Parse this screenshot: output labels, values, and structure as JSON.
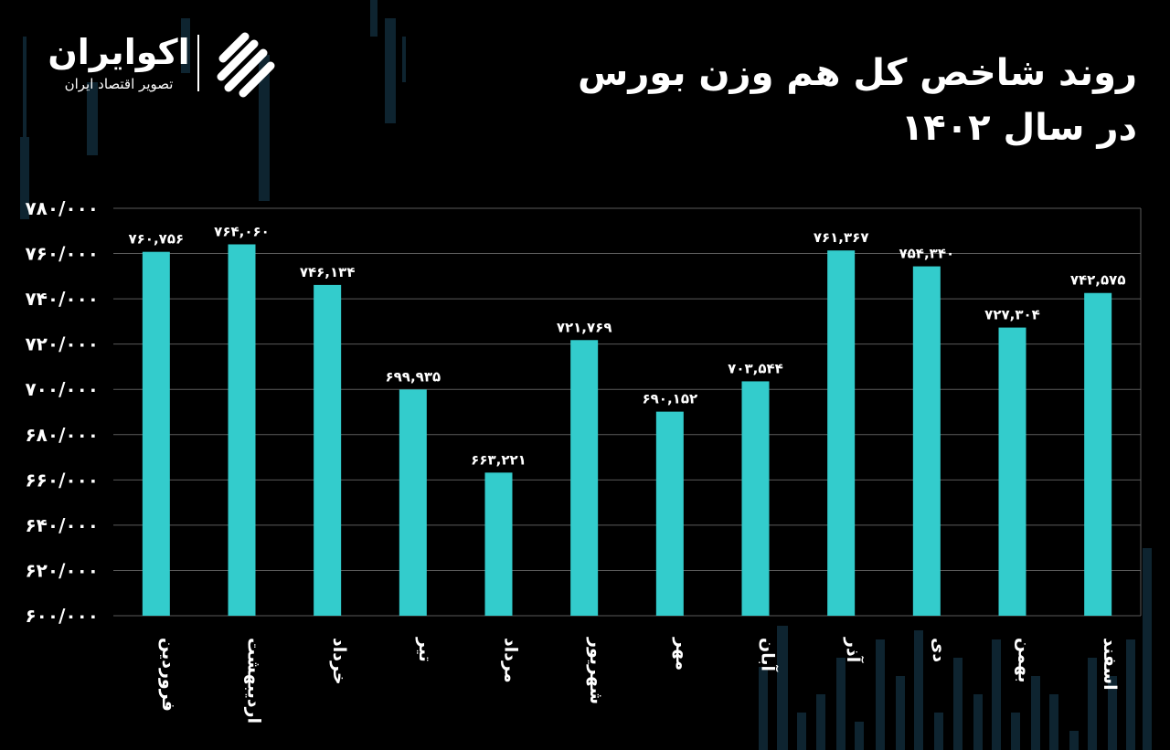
{
  "brand": {
    "name": "اکوایران",
    "tagline": "تصویر اقتصاد ایران"
  },
  "title_line1": "روند شاخص کل هم وزن بورس",
  "title_line2": "در سال ۱۴۰۲",
  "colors": {
    "background": "#000000",
    "bar": "#33cccc",
    "grid": "#5a5a5a",
    "text": "#ffffff",
    "decor": "#0e2430"
  },
  "chart_data": {
    "type": "bar",
    "title": "روند شاخص کل هم وزن بورس در سال ۱۴۰۲",
    "xlabel": "",
    "ylabel": "",
    "ylim": [
      600000,
      780000
    ],
    "grid": true,
    "legend": "none",
    "categories": [
      "فروردین",
      "اردیبهشت",
      "خرداد",
      "تیر",
      "مرداد",
      "شهریور",
      "مهر",
      "آبان",
      "آذر",
      "دی",
      "بهمن",
      "اسفند"
    ],
    "values": [
      760756,
      764060,
      746134,
      699935,
      663221,
      721769,
      690152,
      703544,
      761367,
      754340,
      727304,
      742575
    ],
    "value_labels": [
      "۷۶۰,۷۵۶",
      "۷۶۴,۰۶۰",
      "۷۴۶,۱۳۴",
      "۶۹۹,۹۳۵",
      "۶۶۳,۲۲۱",
      "۷۲۱,۷۶۹",
      "۶۹۰,۱۵۲",
      "۷۰۳,۵۴۴",
      "۷۶۱,۳۶۷",
      "۷۵۴,۳۴۰",
      "۷۲۷,۳۰۴",
      "۷۴۲,۵۷۵"
    ],
    "yticks": [
      600000,
      620000,
      640000,
      660000,
      680000,
      700000,
      720000,
      740000,
      760000,
      780000
    ],
    "ytick_labels": [
      "۶۰۰/۰۰۰",
      "۶۲۰/۰۰۰",
      "۶۴۰/۰۰۰",
      "۶۶۰/۰۰۰",
      "۶۸۰/۰۰۰",
      "۷۰۰/۰۰۰",
      "۷۲۰/۰۰۰",
      "۷۴۰/۰۰۰",
      "۷۶۰/۰۰۰",
      "۷۸۰/۰۰۰"
    ]
  }
}
